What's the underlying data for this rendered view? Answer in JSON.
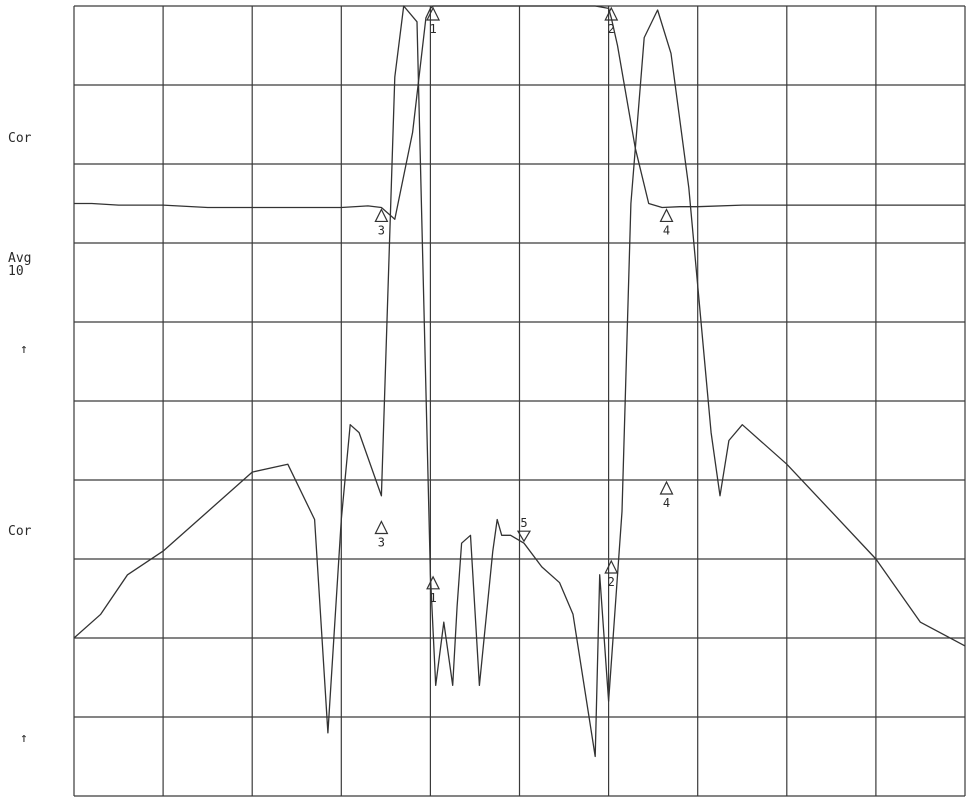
{
  "side_labels": {
    "cor_upper": "Cor",
    "avg": "Avg\n10",
    "arrow_upper": "↑",
    "cor_lower": "Cor",
    "arrow_lower": "↑"
  },
  "chart_data": {
    "type": "line",
    "title": "",
    "xlabel": "",
    "ylabel": "",
    "xlim": [
      0,
      10
    ],
    "ylim": [
      0,
      10
    ],
    "grid": true,
    "grid_divisions": {
      "x": 10,
      "y": 10
    },
    "colors": {
      "trace": "#333333",
      "grid": "#3a3a3a",
      "background": "#ffffff"
    },
    "series": [
      {
        "id": "transmission",
        "x": [
          0.0,
          0.2,
          0.5,
          1.0,
          1.5,
          2.0,
          2.5,
          3.0,
          3.3,
          3.45,
          3.6,
          3.8,
          3.95,
          4.0,
          4.03,
          4.25,
          4.6,
          4.75,
          5.0,
          5.3,
          5.6,
          5.85,
          6.0,
          6.03,
          6.1,
          6.3,
          6.45,
          6.6,
          6.8,
          7.0,
          7.5,
          8.0,
          8.5,
          9.0,
          9.5,
          10.0
        ],
        "y": [
          7.5,
          7.5,
          7.48,
          7.48,
          7.45,
          7.45,
          7.45,
          7.45,
          7.47,
          7.45,
          7.3,
          8.4,
          9.85,
          9.97,
          10.0,
          10.0,
          10.0,
          10.0,
          10.0,
          10.0,
          10.0,
          10.0,
          9.97,
          9.85,
          9.5,
          8.2,
          7.5,
          7.45,
          7.46,
          7.46,
          7.48,
          7.48,
          7.48,
          7.48,
          7.48,
          7.48
        ]
      },
      {
        "id": "reflection",
        "x": [
          0.0,
          0.3,
          0.6,
          1.0,
          1.5,
          2.0,
          2.4,
          2.7,
          2.85,
          3.0,
          3.1,
          3.2,
          3.45,
          3.6,
          3.7,
          3.85,
          4.0,
          4.06,
          4.15,
          4.25,
          4.3,
          4.35,
          4.45,
          4.55,
          4.7,
          4.75,
          4.8,
          4.9,
          5.05,
          5.25,
          5.45,
          5.6,
          5.85,
          5.9,
          6.0,
          6.15,
          6.25,
          6.4,
          6.55,
          6.7,
          6.9,
          7.15,
          7.25,
          7.35,
          7.5,
          8.0,
          8.5,
          9.0,
          9.5,
          10.0
        ],
        "y": [
          2.0,
          2.3,
          2.8,
          3.1,
          3.6,
          4.1,
          4.2,
          3.5,
          0.8,
          3.5,
          4.7,
          4.6,
          3.8,
          9.1,
          10.0,
          9.8,
          2.8,
          1.4,
          2.2,
          1.4,
          2.4,
          3.2,
          3.3,
          1.4,
          3.1,
          3.5,
          3.3,
          3.3,
          3.2,
          2.9,
          2.7,
          2.3,
          0.5,
          2.8,
          1.2,
          3.6,
          7.5,
          9.6,
          9.95,
          9.4,
          7.7,
          4.6,
          3.8,
          4.5,
          4.7,
          4.2,
          3.6,
          3.0,
          2.2,
          1.9
        ]
      }
    ],
    "markers": [
      {
        "label": "1",
        "series": "transmission",
        "x": 4.03,
        "y": 10.0,
        "direction": "up"
      },
      {
        "label": "2",
        "series": "transmission",
        "x": 6.03,
        "y": 10.0,
        "direction": "up"
      },
      {
        "label": "3",
        "series": "transmission",
        "x": 3.45,
        "y": 7.45,
        "direction": "up"
      },
      {
        "label": "4",
        "series": "transmission",
        "x": 6.65,
        "y": 7.45,
        "direction": "up"
      },
      {
        "label": "1",
        "series": "reflection",
        "x": 4.03,
        "y": 2.8,
        "direction": "up"
      },
      {
        "label": "2",
        "series": "reflection",
        "x": 6.03,
        "y": 3.0,
        "direction": "up"
      },
      {
        "label": "3",
        "series": "reflection",
        "x": 3.45,
        "y": 3.5,
        "direction": "up"
      },
      {
        "label": "4",
        "series": "reflection",
        "x": 6.65,
        "y": 4.0,
        "direction": "up"
      },
      {
        "label": "5",
        "series": "reflection",
        "x": 5.05,
        "y": 3.2,
        "direction": "down"
      }
    ]
  }
}
